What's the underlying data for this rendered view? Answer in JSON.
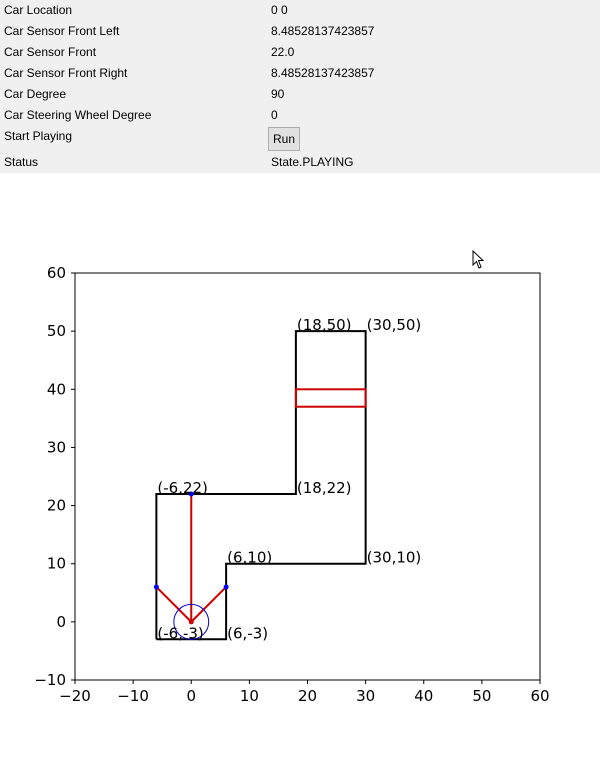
{
  "panel": {
    "rows": [
      {
        "label": "Car Location",
        "value": "0 0"
      },
      {
        "label": "Car Sensor Front Left",
        "value": "8.48528137423857"
      },
      {
        "label": "Car Sensor Front",
        "value": "22.0"
      },
      {
        "label": "Car Sensor Front Right",
        "value": "8.48528137423857"
      },
      {
        "label": "Car Degree",
        "value": "90"
      },
      {
        "label": "Car Steering Wheel Degree",
        "value": "0"
      },
      {
        "label": "Start Playing",
        "run_button": "Run"
      },
      {
        "label": "Status",
        "value": "State.PLAYING"
      }
    ]
  },
  "chart_data": {
    "type": "line",
    "xlim": [
      -20,
      60
    ],
    "ylim": [
      -10,
      60
    ],
    "xticks": [
      -20,
      -10,
      0,
      10,
      20,
      30,
      40,
      50,
      60
    ],
    "yticks": [
      -10,
      0,
      10,
      20,
      30,
      40,
      50,
      60
    ],
    "xtick_labels": [
      "−20",
      "−10",
      "0",
      "10",
      "20",
      "30",
      "40",
      "50",
      "60"
    ],
    "ytick_labels": [
      "−10",
      "0",
      "10",
      "20",
      "30",
      "40",
      "50",
      "60"
    ],
    "grid": false,
    "track": [
      [
        -6,
        -3
      ],
      [
        -6,
        22
      ],
      [
        18,
        22
      ],
      [
        18,
        50
      ],
      [
        30,
        50
      ],
      [
        30,
        10
      ],
      [
        6,
        10
      ],
      [
        6,
        -3
      ],
      [
        -6,
        -3
      ]
    ],
    "track_color": "#000000",
    "point_labels": [
      {
        "text": "(-6,-3)",
        "x": -6,
        "y": -3
      },
      {
        "text": "(-6,22)",
        "x": -6,
        "y": 22
      },
      {
        "text": "(18,22)",
        "x": 18,
        "y": 22
      },
      {
        "text": "(18,50)",
        "x": 18,
        "y": 50
      },
      {
        "text": "(30,50)",
        "x": 30,
        "y": 50
      },
      {
        "text": "(30,10)",
        "x": 30,
        "y": 10
      },
      {
        "text": "(6,10)",
        "x": 6,
        "y": 10
      },
      {
        "text": "(6,-3)",
        "x": 6,
        "y": -3
      }
    ],
    "goal": {
      "x1": 18,
      "y1": 37,
      "x2": 30,
      "y2": 40,
      "color": "#cc0000"
    },
    "car": {
      "x": 0,
      "y": 0,
      "radius": 3,
      "color": "#0000cc"
    },
    "sensors": {
      "origin": [
        0,
        0
      ],
      "ends": [
        [
          -6,
          6
        ],
        [
          0,
          22
        ],
        [
          6,
          6
        ]
      ],
      "line_color": "#cc0000",
      "point_color": "#0000ff"
    }
  }
}
